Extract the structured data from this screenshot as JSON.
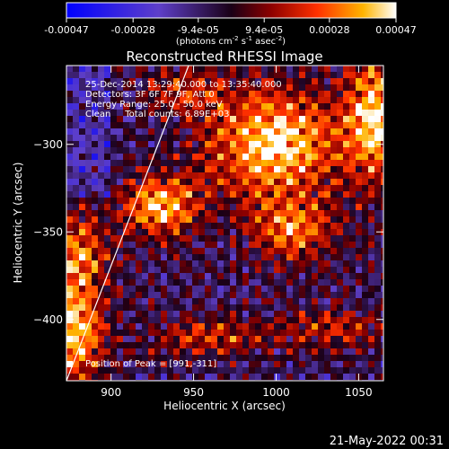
{
  "colorbar": {
    "ticks": [
      "-0.00047",
      "-0.00028",
      "-9.4e-05",
      "9.4e-05",
      "0.00028",
      "0.00047"
    ],
    "tick_values": [
      -0.00047,
      -0.00028,
      -9.4e-05,
      9.4e-05,
      0.00028,
      0.00047
    ],
    "range": [
      -0.00047,
      0.00047
    ],
    "unit_label_main": "(photons cm",
    "unit_exp1": "-2",
    "unit_mid": " s",
    "unit_exp2": "-1",
    "unit_end": " asec",
    "unit_exp3": "-2",
    "unit_close": ")"
  },
  "chart_data": {
    "type": "heatmap",
    "title": "Reconstructed RHESSI Image",
    "xlabel": "Heliocentric X (arcsec)",
    "ylabel": "Heliocentric Y (arcsec)",
    "xlim": [
      873,
      1065
    ],
    "ylim": [
      -435,
      -255
    ],
    "xticks": [
      900,
      950,
      1000,
      1050
    ],
    "yticks": [
      -300,
      -350,
      -400
    ],
    "xtick_labels": [
      "900",
      "950",
      "1000",
      "1050"
    ],
    "ytick_labels": [
      "−300",
      "−350",
      "−400"
    ],
    "limb_line": [
      [
        873,
        -435
      ],
      [
        947,
        -255
      ]
    ],
    "sources": [
      {
        "x": 875,
        "y": -405,
        "amp": 1.0,
        "sx": 14,
        "sy": 22
      },
      {
        "x": 882,
        "y": -360,
        "amp": 0.6,
        "sx": 12,
        "sy": 14
      },
      {
        "x": 930,
        "y": -335,
        "amp": 0.9,
        "sx": 16,
        "sy": 12
      },
      {
        "x": 1000,
        "y": -300,
        "amp": 1.0,
        "sx": 28,
        "sy": 22
      },
      {
        "x": 1010,
        "y": -350,
        "amp": 0.65,
        "sx": 18,
        "sy": 12
      },
      {
        "x": 1060,
        "y": -285,
        "amp": 0.9,
        "sx": 12,
        "sy": 25
      },
      {
        "x": 960,
        "y": -410,
        "amp": 0.5,
        "sx": 25,
        "sy": 7
      },
      {
        "x": 1035,
        "y": -405,
        "amp": 0.45,
        "sx": 22,
        "sy": 8
      },
      {
        "x": 945,
        "y": -270,
        "amp": 0.4,
        "sx": 18,
        "sy": 10
      }
    ],
    "annotations": {
      "line1": "25-Dec-2014 13:29:40.000 to 13:35:40.000",
      "line2": "Detectors: 3F 6F 7F 9F, Att 0",
      "line3": "Energy Range: 25.0 - 50.0 keV",
      "line4": "Clean     Total counts: 6.89E+03",
      "peak": "Position of Peak = [991,-311]"
    }
  },
  "timestamp": "21-May-2022 00:31"
}
